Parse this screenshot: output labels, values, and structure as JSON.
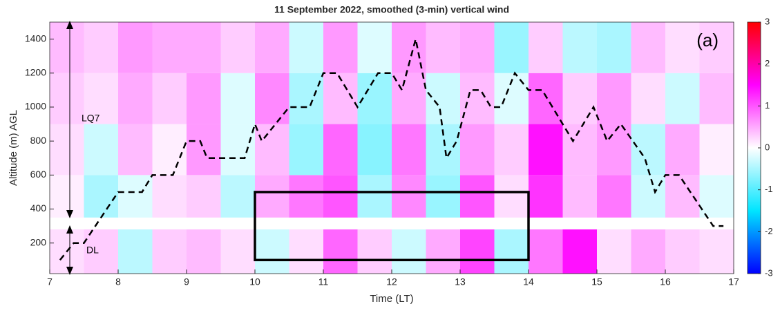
{
  "chart_data": {
    "type": "heatmap",
    "title": "11 September 2022, smoothed (3-min) vertical wind",
    "x_label": "Time (LT)",
    "y_label": "Altitude (m) AGL",
    "xlim": [
      7,
      17
    ],
    "ylim": [
      20,
      1500
    ],
    "xticks": [
      7,
      8,
      9,
      10,
      11,
      12,
      13,
      14,
      15,
      16,
      17
    ],
    "yticks": [
      200,
      400,
      600,
      800,
      1000,
      1200,
      1400
    ],
    "clim": [
      -3,
      3
    ],
    "cticks": [
      -3,
      -2,
      -1,
      0,
      1,
      2,
      3
    ],
    "colormap": [
      "#0000ff",
      "#00e5ff",
      "#ffffff",
      "#ff00ff",
      "#ff0000"
    ],
    "x_edges": [
      7,
      7.5,
      8,
      8.5,
      9,
      9.5,
      10,
      10.5,
      11,
      11.5,
      12,
      12.5,
      13,
      13.5,
      14,
      14.5,
      15,
      15.5,
      16,
      16.5,
      17
    ],
    "y_edges": [
      20,
      280,
      350,
      600,
      900,
      1200,
      1500
    ],
    "z": [
      [
        0.2,
        0.3,
        -0.4,
        0.3,
        0.4,
        0.2,
        -0.3,
        0.2,
        0.9,
        0.3,
        -0.3,
        0.5,
        1.1,
        -0.5,
        0.8,
        1.4,
        0.2,
        0.5,
        0.3,
        0.2
      ],
      [
        null,
        null,
        null,
        null,
        null,
        null,
        null,
        null,
        null,
        null,
        null,
        null,
        null,
        null,
        null,
        null,
        null,
        null,
        null,
        null
      ],
      [
        0.1,
        -0.5,
        -0.2,
        0.2,
        0.3,
        -0.4,
        0.5,
        0.8,
        1.0,
        -0.5,
        0.7,
        -0.6,
        1.0,
        0.2,
        1.2,
        0.4,
        0.8,
        -0.3,
        0.4,
        -0.2
      ],
      [
        0.2,
        -0.3,
        0.4,
        0.1,
        0.6,
        -0.2,
        0.4,
        -0.6,
        0.9,
        -0.7,
        0.8,
        -0.5,
        0.6,
        0.3,
        1.4,
        0.4,
        0.6,
        -0.4,
        0.5,
        0.1
      ],
      [
        0.3,
        0.2,
        0.5,
        0.3,
        0.6,
        -0.2,
        0.7,
        -0.5,
        0.4,
        -0.6,
        0.5,
        -0.3,
        0.4,
        -0.2,
        0.9,
        0.3,
        0.6,
        0.2,
        -0.3,
        0.4
      ],
      [
        0.4,
        0.3,
        0.6,
        0.5,
        0.5,
        0.3,
        0.5,
        -0.3,
        0.6,
        -0.2,
        0.6,
        0.4,
        0.5,
        -0.6,
        0.3,
        -0.4,
        -0.5,
        0.4,
        0.2,
        0.3
      ]
    ],
    "line": {
      "x": [
        7.15,
        7.35,
        7.5,
        8,
        8.35,
        8.5,
        8.8,
        9,
        9.2,
        9.3,
        9.85,
        10,
        10.1,
        10.5,
        10.8,
        11,
        11.2,
        11.5,
        11.8,
        12,
        12.15,
        12.35,
        12.5,
        12.7,
        12.8,
        12.95,
        13.15,
        13.3,
        13.45,
        13.6,
        13.8,
        14,
        14.2,
        14.65,
        14.95,
        15.15,
        15.35,
        15.7,
        15.85,
        16,
        16.2,
        16.7,
        16.85
      ],
      "y": [
        100,
        200,
        200,
        500,
        500,
        600,
        600,
        800,
        800,
        700,
        700,
        900,
        800,
        1000,
        1000,
        1200,
        1200,
        1000,
        1200,
        1200,
        1100,
        1400,
        1100,
        1000,
        700,
        800,
        1100,
        1100,
        1000,
        1000,
        1200,
        1100,
        1100,
        800,
        1000,
        800,
        900,
        700,
        500,
        600,
        600,
        300,
        300
      ]
    },
    "box": {
      "x": [
        10,
        14
      ],
      "y": [
        100,
        500
      ]
    },
    "panel_label": "(a)",
    "upper_label": "LQ7",
    "lower_label": "DL"
  }
}
